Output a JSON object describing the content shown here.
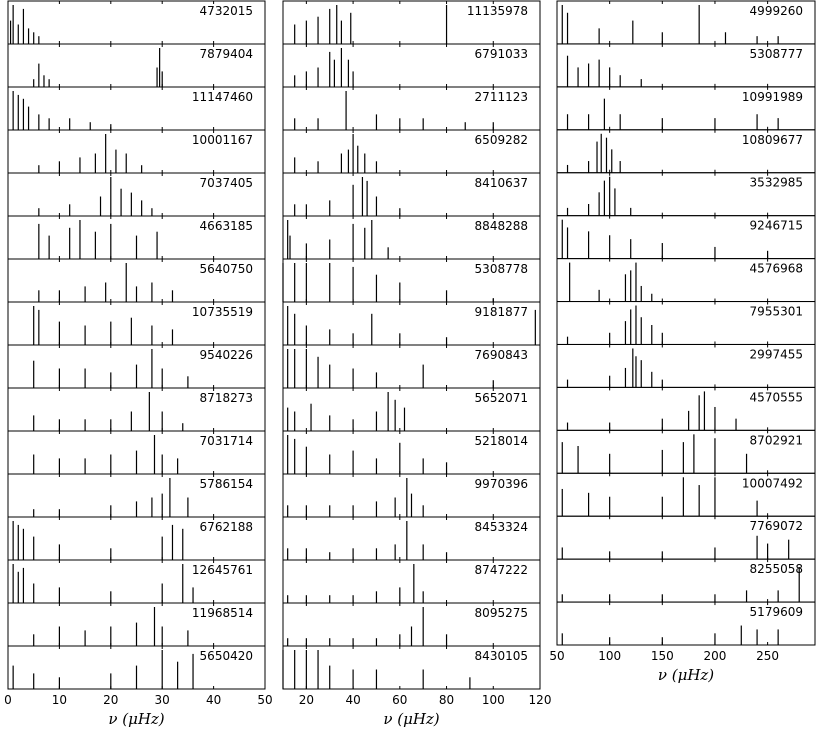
{
  "chart_data": [
    {
      "type": "spectrum",
      "xlabel": "ν (μHz)",
      "xlim": [
        0,
        50
      ],
      "xticks": [
        0,
        10,
        20,
        30,
        40,
        50
      ],
      "ylim": [
        0,
        1
      ],
      "color": "#000000",
      "panels": [
        {
          "label": "4732015",
          "x": [
            0.5,
            1,
            2,
            3,
            4,
            5,
            6
          ],
          "values": [
            0.6,
            1,
            0.5,
            0.9,
            0.4,
            0.3,
            0.2
          ]
        },
        {
          "label": "7879404",
          "x": [
            5,
            6,
            7,
            8,
            29,
            29.5,
            30
          ],
          "values": [
            0.2,
            0.6,
            0.3,
            0.2,
            0.5,
            1,
            0.4
          ]
        },
        {
          "label": "11147460",
          "x": [
            1,
            2,
            3,
            4,
            6,
            8,
            12,
            16,
            20
          ],
          "values": [
            1,
            0.9,
            0.8,
            0.6,
            0.4,
            0.3,
            0.3,
            0.2,
            0.15
          ]
        },
        {
          "label": "10001167",
          "x": [
            6,
            10,
            14,
            17,
            19,
            21,
            23,
            26
          ],
          "values": [
            0.2,
            0.3,
            0.4,
            0.5,
            1,
            0.6,
            0.5,
            0.2
          ]
        },
        {
          "label": "7037405",
          "x": [
            6,
            12,
            18,
            20,
            22,
            24,
            26,
            28
          ],
          "values": [
            0.2,
            0.3,
            0.5,
            1,
            0.7,
            0.6,
            0.4,
            0.2
          ]
        },
        {
          "label": "4663185",
          "x": [
            6,
            8,
            12,
            14,
            17,
            20,
            25,
            29
          ],
          "values": [
            0.9,
            0.6,
            0.8,
            1,
            0.7,
            0.9,
            0.6,
            0.7
          ]
        },
        {
          "label": "5640750",
          "x": [
            6,
            10,
            15,
            19,
            23,
            25,
            28,
            32
          ],
          "values": [
            0.3,
            0.3,
            0.4,
            0.5,
            1,
            0.4,
            0.5,
            0.3
          ]
        },
        {
          "label": "10735519",
          "x": [
            5,
            6,
            10,
            15,
            20,
            24,
            28,
            32
          ],
          "values": [
            1,
            0.9,
            0.6,
            0.5,
            0.6,
            0.7,
            0.5,
            0.4
          ]
        },
        {
          "label": "9540226",
          "x": [
            5,
            10,
            15,
            20,
            25,
            28,
            30,
            35
          ],
          "values": [
            0.7,
            0.5,
            0.5,
            0.4,
            0.6,
            1,
            0.5,
            0.3
          ]
        },
        {
          "label": "8718273",
          "x": [
            5,
            10,
            15,
            20,
            24,
            27.5,
            30,
            34
          ],
          "values": [
            0.4,
            0.3,
            0.3,
            0.3,
            0.5,
            1,
            0.5,
            0.2
          ]
        },
        {
          "label": "7031714",
          "x": [
            5,
            10,
            15,
            20,
            25,
            28.5,
            30,
            33
          ],
          "values": [
            0.5,
            0.4,
            0.4,
            0.5,
            0.6,
            1,
            0.5,
            0.4
          ]
        },
        {
          "label": "5786154",
          "x": [
            5,
            10,
            20,
            25,
            28,
            30,
            31.5,
            35
          ],
          "values": [
            0.2,
            0.2,
            0.3,
            0.4,
            0.5,
            0.6,
            1,
            0.5
          ]
        },
        {
          "label": "6762188",
          "x": [
            1,
            2,
            3,
            5,
            10,
            20,
            30,
            32,
            34
          ],
          "values": [
            1,
            0.9,
            0.8,
            0.6,
            0.4,
            0.3,
            0.6,
            0.9,
            0.8
          ]
        },
        {
          "label": "12645761",
          "x": [
            1,
            2,
            3,
            5,
            10,
            20,
            30,
            34,
            36
          ],
          "values": [
            1,
            0.8,
            0.9,
            0.5,
            0.4,
            0.3,
            0.5,
            1,
            0.4
          ]
        },
        {
          "label": "11968514",
          "x": [
            5,
            10,
            15,
            20,
            25,
            28.5,
            30,
            35
          ],
          "values": [
            0.3,
            0.5,
            0.4,
            0.5,
            0.6,
            1,
            0.5,
            0.4
          ]
        },
        {
          "label": "5650420",
          "x": [
            1,
            5,
            10,
            20,
            25,
            30,
            33,
            36
          ],
          "values": [
            0.6,
            0.4,
            0.3,
            0.4,
            0.6,
            1,
            0.7,
            0.9
          ]
        }
      ]
    },
    {
      "type": "spectrum",
      "xlabel": "ν (μHz)",
      "xlim": [
        10,
        120
      ],
      "xticks": [
        20,
        40,
        60,
        80,
        100,
        120
      ],
      "ylim": [
        0,
        1
      ],
      "color": "#000000",
      "panels": [
        {
          "label": "11135978",
          "x": [
            15,
            20,
            25,
            30,
            33,
            35,
            39,
            80
          ],
          "values": [
            0.5,
            0.6,
            0.7,
            0.9,
            1,
            0.6,
            0.8,
            1
          ]
        },
        {
          "label": "6791033",
          "x": [
            15,
            20,
            25,
            30,
            32,
            35,
            38,
            40
          ],
          "values": [
            0.3,
            0.4,
            0.5,
            0.9,
            0.7,
            1,
            0.7,
            0.4
          ]
        },
        {
          "label": "2711123",
          "x": [
            15,
            25,
            37,
            50,
            60,
            70,
            88,
            100
          ],
          "values": [
            0.3,
            0.3,
            1,
            0.4,
            0.3,
            0.3,
            0.2,
            0.2
          ]
        },
        {
          "label": "6509282",
          "x": [
            15,
            25,
            35,
            38,
            40,
            42,
            45,
            50
          ],
          "values": [
            0.4,
            0.3,
            0.5,
            0.6,
            1,
            0.7,
            0.5,
            0.3
          ]
        },
        {
          "label": "8410637",
          "x": [
            15,
            20,
            30,
            40,
            44,
            46,
            50,
            60
          ],
          "values": [
            0.3,
            0.3,
            0.4,
            0.8,
            1,
            0.9,
            0.5,
            0.2
          ]
        },
        {
          "label": "8848288",
          "x": [
            12,
            13,
            20,
            30,
            40,
            45,
            48,
            55
          ],
          "values": [
            1,
            0.6,
            0.4,
            0.5,
            0.9,
            0.8,
            1,
            0.3
          ]
        },
        {
          "label": "5308778",
          "x": [
            10,
            15,
            20,
            30,
            40,
            50,
            60,
            80,
            100
          ],
          "values": [
            1,
            1,
            1,
            1,
            0.9,
            0.7,
            0.5,
            0.3,
            0.1
          ]
        },
        {
          "label": "9181877",
          "x": [
            12,
            15,
            20,
            30,
            40,
            48,
            60,
            80,
            118
          ],
          "values": [
            1,
            0.8,
            0.5,
            0.4,
            0.3,
            0.8,
            0.3,
            0.2,
            0.9
          ]
        },
        {
          "label": "7690843",
          "x": [
            12,
            15,
            20,
            25,
            30,
            40,
            50,
            70,
            100
          ],
          "values": [
            1,
            1,
            1,
            0.8,
            0.6,
            0.5,
            0.4,
            0.6,
            0.2
          ]
        },
        {
          "label": "5652071",
          "x": [
            12,
            15,
            22,
            30,
            40,
            50,
            55,
            58,
            62
          ],
          "values": [
            0.6,
            0.5,
            0.7,
            0.4,
            0.3,
            0.5,
            1,
            0.8,
            0.6
          ]
        },
        {
          "label": "5218014",
          "x": [
            12,
            15,
            20,
            30,
            40,
            50,
            60,
            70,
            80
          ],
          "values": [
            1,
            0.9,
            0.7,
            0.5,
            0.6,
            0.4,
            0.8,
            0.4,
            0.3
          ]
        },
        {
          "label": "9970396",
          "x": [
            12,
            20,
            30,
            40,
            50,
            58,
            63,
            65,
            70
          ],
          "values": [
            0.3,
            0.3,
            0.3,
            0.3,
            0.4,
            0.5,
            1,
            0.6,
            0.3
          ]
        },
        {
          "label": "8453324",
          "x": [
            12,
            20,
            30,
            40,
            50,
            58,
            63,
            70,
            80
          ],
          "values": [
            0.3,
            0.3,
            0.2,
            0.3,
            0.3,
            0.4,
            1,
            0.4,
            0.2
          ]
        },
        {
          "label": "8747222",
          "x": [
            12,
            20,
            30,
            40,
            50,
            60,
            66,
            70
          ],
          "values": [
            0.2,
            0.2,
            0.2,
            0.2,
            0.3,
            0.4,
            1,
            0.3
          ]
        },
        {
          "label": "8095275",
          "x": [
            12,
            20,
            30,
            40,
            50,
            60,
            65,
            70,
            80
          ],
          "values": [
            0.2,
            0.2,
            0.2,
            0.2,
            0.2,
            0.3,
            0.5,
            1,
            0.3
          ]
        },
        {
          "label": "8430105",
          "x": [
            10,
            15,
            20,
            25,
            30,
            40,
            50,
            70,
            90
          ],
          "values": [
            1,
            1,
            1,
            1,
            0.6,
            0.5,
            0.5,
            0.5,
            0.3
          ]
        }
      ]
    },
    {
      "type": "spectrum",
      "xlabel": "ν (μHz)",
      "xlim": [
        50,
        295
      ],
      "xticks": [
        50,
        100,
        150,
        200,
        250
      ],
      "ylim": [
        0,
        1
      ],
      "color": "#000000",
      "panels": [
        {
          "label": "4999260",
          "x": [
            55,
            60,
            90,
            122,
            150,
            185,
            210,
            240,
            260
          ],
          "values": [
            1,
            0.8,
            0.4,
            0.6,
            0.3,
            1,
            0.3,
            0.2,
            0.2
          ]
        },
        {
          "label": "5308777",
          "x": [
            60,
            70,
            80,
            90,
            100,
            110,
            130
          ],
          "values": [
            0.8,
            0.5,
            0.6,
            0.7,
            0.5,
            0.3,
            0.2
          ]
        },
        {
          "label": "10991989",
          "x": [
            60,
            80,
            95,
            110,
            150,
            200,
            240,
            260
          ],
          "values": [
            0.4,
            0.4,
            0.8,
            0.4,
            0.3,
            0.3,
            0.4,
            0.3
          ]
        },
        {
          "label": "10809677",
          "x": [
            60,
            80,
            88,
            92,
            97,
            102,
            110
          ],
          "values": [
            0.2,
            0.3,
            0.8,
            1,
            0.9,
            0.6,
            0.3
          ]
        },
        {
          "label": "3532985",
          "x": [
            60,
            80,
            90,
            95,
            100,
            105,
            120
          ],
          "values": [
            0.2,
            0.3,
            0.6,
            0.9,
            1,
            0.7,
            0.2
          ]
        },
        {
          "label": "9246715",
          "x": [
            55,
            60,
            80,
            100,
            120,
            150,
            200,
            250
          ],
          "values": [
            1,
            0.8,
            0.7,
            0.6,
            0.5,
            0.4,
            0.3,
            0.2
          ]
        },
        {
          "label": "4576968",
          "x": [
            62,
            90,
            115,
            120,
            125,
            130,
            140
          ],
          "values": [
            1,
            0.3,
            0.7,
            0.8,
            1,
            0.4,
            0.2
          ]
        },
        {
          "label": "7955301",
          "x": [
            60,
            100,
            115,
            120,
            125,
            130,
            140,
            150
          ],
          "values": [
            0.2,
            0.3,
            0.6,
            0.9,
            1,
            0.7,
            0.5,
            0.3
          ]
        },
        {
          "label": "2997455",
          "x": [
            60,
            100,
            115,
            122,
            125,
            130,
            140,
            150
          ],
          "values": [
            0.2,
            0.3,
            0.5,
            1,
            0.8,
            0.7,
            0.4,
            0.2
          ]
        },
        {
          "label": "4570555",
          "x": [
            60,
            100,
            150,
            175,
            185,
            190,
            200,
            220
          ],
          "values": [
            0.2,
            0.2,
            0.3,
            0.5,
            0.9,
            1,
            0.6,
            0.3
          ]
        },
        {
          "label": "8702921",
          "x": [
            55,
            70,
            100,
            150,
            170,
            180,
            200,
            230
          ],
          "values": [
            0.8,
            0.7,
            0.5,
            0.6,
            0.8,
            1,
            0.9,
            0.5
          ]
        },
        {
          "label": "10007492",
          "x": [
            55,
            80,
            100,
            150,
            170,
            185,
            200,
            240
          ],
          "values": [
            0.7,
            0.6,
            0.5,
            0.5,
            1,
            0.8,
            1,
            0.4
          ]
        },
        {
          "label": "7769072",
          "x": [
            55,
            100,
            150,
            200,
            240,
            250,
            270
          ],
          "values": [
            0.3,
            0.2,
            0.2,
            0.3,
            0.6,
            0.4,
            0.5
          ]
        },
        {
          "label": "8255058",
          "x": [
            55,
            100,
            150,
            200,
            230,
            260,
            280
          ],
          "values": [
            0.2,
            0.2,
            0.2,
            0.2,
            0.3,
            0.3,
            0.9
          ]
        },
        {
          "label": "5179609",
          "x": [
            55,
            100,
            150,
            200,
            225,
            240,
            260
          ],
          "values": [
            0.3,
            0.2,
            0.2,
            0.3,
            0.5,
            0.4,
            0.4
          ]
        }
      ]
    }
  ]
}
